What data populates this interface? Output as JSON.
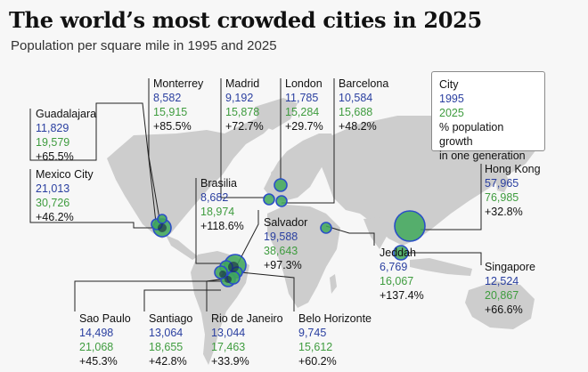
{
  "title": "The world’s most crowded cities in 2025",
  "subtitle": "Population per square mile in 1995 and 2025",
  "legend": {
    "name": "City",
    "v1995": "1995",
    "v2025": "2025",
    "growth_line1": "% population growth",
    "growth_line2": "in one generation"
  },
  "colors": {
    "pop_1995": "#2a3fa0",
    "pop_2025": "#3f9c3f",
    "land": "#cdcdcd",
    "bubble_fill": "#3fa85a",
    "bubble_stroke": "#2b4fc7"
  },
  "cities": [
    {
      "name": "Monterrey",
      "p1995": "8,582",
      "p2025": "15,915",
      "growth": "+85.5%"
    },
    {
      "name": "Madrid",
      "p1995": "9,192",
      "p2025": "15,878",
      "growth": "+72.7%"
    },
    {
      "name": "London",
      "p1995": "11,785",
      "p2025": "15,284",
      "growth": "+29.7%"
    },
    {
      "name": "Barcelona",
      "p1995": "10,584",
      "p2025": "15,688",
      "growth": "+48.2%"
    },
    {
      "name": "Guadalajara",
      "p1995": "11,829",
      "p2025": "19,579",
      "growth": "+65.5%"
    },
    {
      "name": "Mexico City",
      "p1995": "21,013",
      "p2025": "30,726",
      "growth": "+46.2%"
    },
    {
      "name": "Brasilia",
      "p1995": "8,682",
      "p2025": "18,974",
      "growth": "+118.6%"
    },
    {
      "name": "Salvador",
      "p1995": "19,588",
      "p2025": "38,643",
      "growth": "+97.3%"
    },
    {
      "name": "Jeddah",
      "p1995": "6,769",
      "p2025": "16,067",
      "growth": "+137.4%"
    },
    {
      "name": "Hong Kong",
      "p1995": "57,965",
      "p2025": "76,985",
      "growth": "+32.8%"
    },
    {
      "name": "Singapore",
      "p1995": "12,524",
      "p2025": "20,867",
      "growth": "+66.6%"
    },
    {
      "name": "Sao Paulo",
      "p1995": "14,498",
      "p2025": "21,068",
      "growth": "+45.3%"
    },
    {
      "name": "Santiago",
      "p1995": "13,064",
      "p2025": "18,655",
      "growth": "+42.8%"
    },
    {
      "name": "Rio de Janeiro",
      "p1995": "13,044",
      "p2025": "17,463",
      "growth": "+33.9%"
    },
    {
      "name": "Belo Horizonte",
      "p1995": "9,745",
      "p2025": "15,612",
      "growth": "+60.2%"
    }
  ]
}
